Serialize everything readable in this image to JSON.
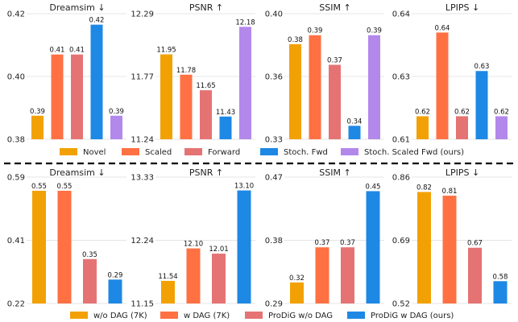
{
  "colors": {
    "orange": "#F2A104",
    "coral": "#FF7043",
    "rose": "#E57373",
    "blue": "#1E88E5",
    "lavender": "#B388EB",
    "grid": "#e4e4e4",
    "divider": "#000000"
  },
  "legend_top": [
    {
      "label": "Novel",
      "color": "#F2A104"
    },
    {
      "label": "Scaled",
      "color": "#FF7043"
    },
    {
      "label": "Forward",
      "color": "#E57373"
    },
    {
      "label": "Stoch. Fwd",
      "color": "#1E88E5"
    },
    {
      "label": "Stoch. Scaled Fwd (ours)",
      "color": "#B388EB"
    }
  ],
  "legend_bottom": [
    {
      "label": "w/o DAG (7K)",
      "color": "#F2A104"
    },
    {
      "label": "w DAG (7K)",
      "color": "#FF7043"
    },
    {
      "label": "ProDiG w/o DAG",
      "color": "#E57373"
    },
    {
      "label": "ProDiG w DAG (ours)",
      "color": "#1E88E5"
    }
  ],
  "chart_data": [
    {
      "type": "bar",
      "row": 0,
      "col": 0,
      "title": "Dreamsim ↓",
      "ylim": [
        0.38,
        0.42
      ],
      "ticks": [
        "0.38",
        "0.40",
        "0.42"
      ],
      "categories": [
        "Novel",
        "Scaled",
        "Forward",
        "Stoch. Fwd",
        "Stoch. Scaled Fwd (ours)"
      ],
      "values": [
        0.3875,
        0.407,
        0.407,
        0.4165,
        0.3875
      ],
      "labels": [
        "0.39",
        "0.41",
        "0.41",
        "0.42",
        "0.39"
      ]
    },
    {
      "type": "bar",
      "row": 0,
      "col": 1,
      "title": "PSNR ↑",
      "ylim": [
        11.24,
        12.29
      ],
      "ticks": [
        "11.24",
        "11.77",
        "12.29"
      ],
      "categories": [
        "Novel",
        "Scaled",
        "Forward",
        "Stoch. Fwd",
        "Stoch. Scaled Fwd (ours)"
      ],
      "values": [
        11.95,
        11.78,
        11.65,
        11.43,
        12.18
      ],
      "labels": [
        "11.95",
        "11.78",
        "11.65",
        "11.43",
        "12.18"
      ]
    },
    {
      "type": "bar",
      "row": 0,
      "col": 2,
      "title": "SSIM ↑",
      "ylim": [
        0.33,
        0.4
      ],
      "ticks": [
        "0.33",
        "0.36",
        "0.40"
      ],
      "categories": [
        "Novel",
        "Scaled",
        "Forward",
        "Stoch. Fwd",
        "Stoch. Scaled Fwd (ours)"
      ],
      "values": [
        0.383,
        0.388,
        0.3715,
        0.3375,
        0.388
      ],
      "labels": [
        "0.38",
        "0.39",
        "0.37",
        "0.34",
        "0.39"
      ]
    },
    {
      "type": "bar",
      "row": 0,
      "col": 3,
      "title": "LPIPS ↓",
      "ylim": [
        0.61,
        0.64
      ],
      "ticks": [
        "0.61",
        "0.63",
        "0.64"
      ],
      "categories": [
        "Novel",
        "Scaled",
        "Forward",
        "Stoch. Fwd",
        "Stoch. Scaled Fwd (ours)"
      ],
      "values": [
        0.6155,
        0.6355,
        0.6155,
        0.6263,
        0.6155
      ],
      "labels": [
        "0.62",
        "0.64",
        "0.62",
        "0.63",
        "0.62"
      ]
    },
    {
      "type": "bar",
      "row": 1,
      "col": 0,
      "title": "Dreamsim ↓",
      "ylim": [
        0.22,
        0.59
      ],
      "ticks": [
        "0.22",
        "0.41",
        "0.59"
      ],
      "categories": [
        "w/o DAG (7K)",
        "w DAG (7K)",
        "ProDiG w/o DAG",
        "ProDiG w DAG (ours)"
      ],
      "values": [
        0.55,
        0.55,
        0.35,
        0.29
      ],
      "labels": [
        "0.55",
        "0.55",
        "0.35",
        "0.29"
      ]
    },
    {
      "type": "bar",
      "row": 1,
      "col": 1,
      "title": "PSNR ↑",
      "ylim": [
        11.15,
        13.33
      ],
      "ticks": [
        "11.15",
        "12.24",
        "13.33"
      ],
      "categories": [
        "w/o DAG (7K)",
        "w DAG (7K)",
        "ProDiG w/o DAG",
        "ProDiG w DAG (ours)"
      ],
      "values": [
        11.54,
        12.1,
        12.01,
        13.1
      ],
      "labels": [
        "11.54",
        "12.10",
        "12.01",
        "13.10"
      ]
    },
    {
      "type": "bar",
      "row": 1,
      "col": 2,
      "title": "SSIM ↑",
      "ylim": [
        0.29,
        0.47
      ],
      "ticks": [
        "0.29",
        "0.38",
        "0.47"
      ],
      "categories": [
        "w/o DAG (7K)",
        "w DAG (7K)",
        "ProDiG w/o DAG",
        "ProDiG w DAG (ours)"
      ],
      "values": [
        0.32,
        0.37,
        0.37,
        0.45
      ],
      "labels": [
        "0.32",
        "0.37",
        "0.37",
        "0.45"
      ]
    },
    {
      "type": "bar",
      "row": 1,
      "col": 3,
      "title": "LPIPS ↓",
      "ylim": [
        0.52,
        0.86
      ],
      "ticks": [
        "0.52",
        "0.69",
        "0.86"
      ],
      "categories": [
        "w/o DAG (7K)",
        "w DAG (7K)",
        "ProDiG w/o DAG",
        "ProDiG w DAG (ours)"
      ],
      "values": [
        0.82,
        0.81,
        0.67,
        0.58
      ],
      "labels": [
        "0.82",
        "0.81",
        "0.67",
        "0.58"
      ]
    }
  ]
}
